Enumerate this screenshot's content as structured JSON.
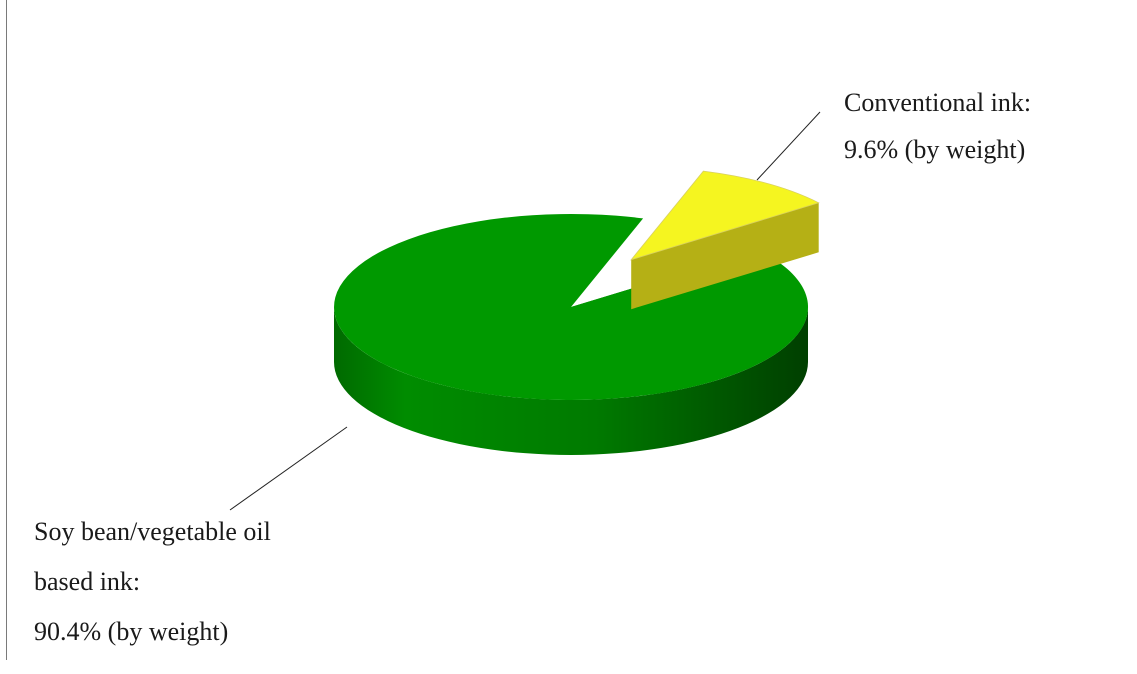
{
  "chart_data": {
    "type": "pie",
    "style": "3d-exploded",
    "title": "",
    "unit": "% (by weight)",
    "slices": [
      {
        "key": "soy",
        "name": "Soy bean/vegetable oil based ink",
        "value": 90.4,
        "color_top": "#009900",
        "color_side": "#007700",
        "label_lines": [
          "Soy bean/vegetable oil",
          "based ink:",
          "90.4% (by weight)"
        ]
      },
      {
        "key": "conventional",
        "name": "Conventional ink",
        "value": 9.6,
        "color_top": "#f5f520",
        "color_side": "#b5b015",
        "label_lines": [
          "Conventional ink:",
          "9.6% (by weight)"
        ]
      }
    ]
  }
}
